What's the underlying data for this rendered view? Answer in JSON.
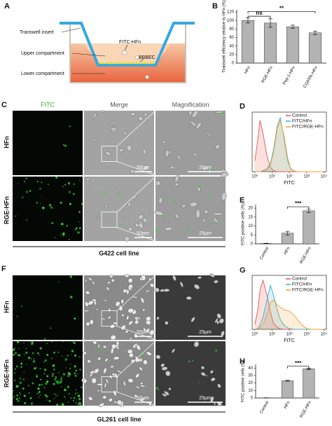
{
  "figure": {
    "panel_labels": [
      "A",
      "B",
      "C",
      "D",
      "E",
      "F",
      "G",
      "H"
    ],
    "transwell": {
      "labels": [
        "Transwell insert",
        "FITC-HFn",
        "Upper compartment",
        "BBBEC",
        "Lower compartment"
      ]
    },
    "C": {
      "columns": [
        "FITC",
        "Merge",
        "Magnification"
      ],
      "rows": [
        "HFn",
        "RGE-HFn"
      ],
      "scale_bars": [
        "50μm",
        "25μm",
        "50μm",
        "25μm"
      ],
      "caption": "G422 cell line"
    },
    "F": {
      "rows": [
        "HFn",
        "RGE-HFn"
      ],
      "scale_bars": [
        "50μm",
        "25μm",
        "50μm",
        "25μm"
      ],
      "caption": "GL261 cell line"
    }
  },
  "chart_data": [
    {
      "type": "bar",
      "ylabel": "Transwell efficiency relative to HFn (%)",
      "categories": [
        "HFn",
        "RGE-HFn",
        "Pep-1-HFn",
        "CGKRK-HFn"
      ],
      "values": [
        100,
        94,
        85,
        71
      ],
      "errors": [
        6,
        10,
        4,
        4
      ],
      "color": "#b3b3b3",
      "ylim": [
        0,
        125
      ],
      "yticks": [
        0,
        20,
        40,
        60,
        80,
        100,
        120
      ],
      "annotations": [
        "ns",
        "**"
      ]
    },
    {
      "type": "line",
      "xlabel": "FITC",
      "log_x": true,
      "xlim": [
        0.7,
        14000
      ],
      "ylim": [
        0,
        110
      ],
      "legend": "upper right",
      "xticks": [
        {
          "value": 1,
          "label": "10⁰"
        },
        {
          "value": 10,
          "label": "10¹"
        },
        {
          "value": 100,
          "label": "10²"
        },
        {
          "value": 1000,
          "label": "10³"
        },
        {
          "value": 10000,
          "label": "10⁴"
        }
      ],
      "x": [
        1,
        1.5,
        2,
        3,
        5,
        8,
        12,
        20,
        30,
        50,
        80,
        120,
        200,
        300,
        500,
        800,
        1200,
        2000,
        5000,
        10000
      ],
      "series": [
        {
          "name": "Control",
          "color": "#e8524a",
          "values": [
            20,
            60,
            95,
            70,
            30,
            8,
            2,
            0,
            0,
            0,
            0,
            0,
            0,
            0,
            0,
            0,
            0,
            0,
            0,
            0
          ]
        },
        {
          "name": "FITC/HFn",
          "color": "#3aaed8",
          "values": [
            0,
            0,
            0,
            2,
            5,
            15,
            40,
            85,
            100,
            60,
            20,
            5,
            1,
            0,
            0,
            0,
            0,
            0,
            0,
            0
          ]
        },
        {
          "name": "FITC/RGE-HFn",
          "color": "#f0a030",
          "values": [
            0,
            0,
            0,
            1,
            4,
            12,
            35,
            80,
            95,
            65,
            25,
            6,
            1,
            0,
            0,
            0,
            0,
            0,
            0,
            0
          ]
        }
      ]
    },
    {
      "type": "bar",
      "ylabel": "FITC positive cells (%)",
      "categories": [
        "Control",
        "HFn",
        "RGE-HFn"
      ],
      "values": [
        0.2,
        6,
        18.5
      ],
      "errors": [
        0.1,
        1,
        1
      ],
      "color": "#b3b3b3",
      "ylim": [
        0,
        22
      ],
      "yticks": [
        0,
        5,
        10,
        15,
        20
      ],
      "annotations": [
        "***"
      ]
    },
    {
      "type": "line",
      "xlabel": "FITC",
      "log_x": true,
      "xlim": [
        0.7,
        14000
      ],
      "ylim": [
        0,
        110
      ],
      "legend": "upper right",
      "xticks": [
        {
          "value": 1,
          "label": "10⁰"
        },
        {
          "value": 10,
          "label": "10¹"
        },
        {
          "value": 100,
          "label": "10²"
        },
        {
          "value": 1000,
          "label": "10³"
        },
        {
          "value": 10000,
          "label": "10⁴"
        }
      ],
      "x": [
        1,
        1.5,
        2,
        3,
        5,
        8,
        12,
        20,
        30,
        50,
        80,
        120,
        200,
        300,
        500,
        800,
        1200,
        2000,
        5000,
        10000
      ],
      "series": [
        {
          "name": "Control",
          "color": "#e8524a",
          "values": [
            10,
            40,
            80,
            100,
            70,
            35,
            12,
            4,
            1,
            0,
            0,
            0,
            0,
            0,
            0,
            0,
            0,
            0,
            0,
            0
          ]
        },
        {
          "name": "FITC/HFn",
          "color": "#3aaed8",
          "values": [
            0,
            2,
            8,
            25,
            60,
            90,
            70,
            40,
            20,
            8,
            3,
            1,
            0,
            0,
            0,
            0,
            0,
            0,
            0,
            0
          ]
        },
        {
          "name": "FITC/RGE-HFn",
          "color": "#f0a030",
          "values": [
            0,
            1,
            3,
            10,
            30,
            55,
            60,
            50,
            45,
            40,
            38,
            35,
            28,
            20,
            10,
            4,
            1,
            0,
            0,
            0
          ]
        }
      ]
    },
    {
      "type": "bar",
      "ylabel": "FITC positive cells (%)",
      "categories": [
        "Control",
        "HFn",
        "RGE-HFn"
      ],
      "values": [
        0.2,
        23,
        39
      ],
      "errors": [
        0.1,
        0.6,
        1
      ],
      "color": "#b3b3b3",
      "ylim": [
        0,
        45
      ],
      "yticks": [
        0,
        10,
        20,
        30,
        40
      ],
      "annotations": [
        "***"
      ]
    }
  ]
}
